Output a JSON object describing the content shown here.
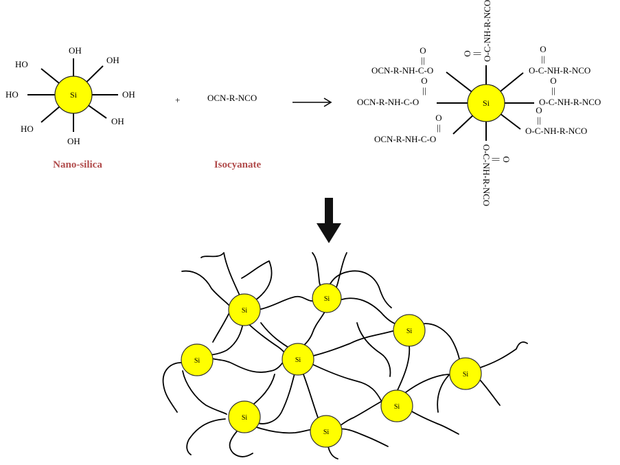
{
  "reactant": {
    "core": "Si",
    "groups": [
      "OH",
      "OH",
      "HO",
      "HO",
      "OH",
      "HO",
      "OH",
      "OH"
    ],
    "caption": "Nano-silica"
  },
  "plus": "+",
  "reagent": {
    "formula": "OCN-R-NCO",
    "caption": "Isocyanate"
  },
  "product": {
    "core": "Si",
    "carbonyl_o": "O",
    "carbonyl_bond": "||",
    "left_groups": [
      "OCN-R-NH-C-O",
      "OCN-R-NH-C-O",
      "OCN-R-NH-C-O"
    ],
    "right_groups": [
      "O-C-NH-R-NCO",
      "O-C-NH-R-NCO",
      "O-C-NH-R-NCO"
    ],
    "top_group": "O-C-NH-R-NCO",
    "bottom_group": "O-C-NH-R-NCO"
  },
  "network": {
    "particle_label": "Si"
  }
}
